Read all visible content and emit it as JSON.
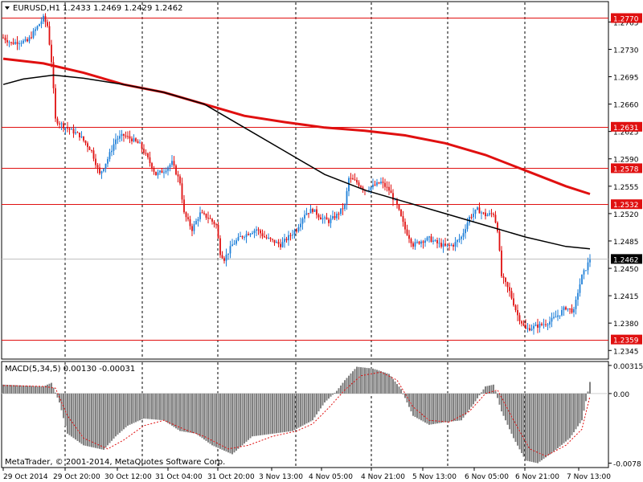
{
  "header": {
    "symbol": "EURUSD,H1",
    "ohlc": "1.2433 1.2469 1.2429 1.2462"
  },
  "macd_header": "MACD(5,34,5) 0.00130 -0.00031",
  "footer": "MetaTrader, © 2001-2014, MetaQuotes Software Corp.",
  "colors": {
    "bull": "#1e7fd8",
    "bear": "#e01010",
    "hline": "#e01010",
    "ma_slow": "#e01010",
    "ma_fast": "#000000",
    "histogram": "#808080",
    "signal": "#e01010"
  },
  "chart_data": [
    {
      "type": "candlestick",
      "title": "EURUSD,H1",
      "y_ticks": [
        "1.2765",
        "1.2730",
        "1.2695",
        "1.2660",
        "1.2625",
        "1.2590",
        "1.2555",
        "1.2520",
        "1.2485",
        "1.2450",
        "1.2415",
        "1.2380",
        "1.2345"
      ],
      "ylim": [
        1.2335,
        1.279
      ],
      "x_ticks": [
        "29 Oct 2014",
        "29 Oct 20:00",
        "30 Oct 12:00",
        "31 Oct 04:00",
        "31 Oct 20:00",
        "3 Nov 13:00",
        "4 Nov 05:00",
        "4 Nov 21:00",
        "5 Nov 13:00",
        "6 Nov 05:00",
        "6 Nov 21:00",
        "7 Nov 13:00"
      ],
      "price_lines": [
        {
          "value": 1.277,
          "label": "1.2770"
        },
        {
          "value": 1.2631,
          "label": "1.2631"
        },
        {
          "value": 1.2578,
          "label": "1.2578"
        },
        {
          "value": 1.2532,
          "label": "1.2532"
        },
        {
          "value": 1.2359,
          "label": "1.2359"
        }
      ],
      "current_price": {
        "value": 1.2462,
        "label": "1.2462"
      },
      "close_path": [
        [
          0,
          1.2745
        ],
        [
          4,
          1.2738
        ],
        [
          8,
          1.274
        ],
        [
          12,
          1.274
        ],
        [
          16,
          1.2755
        ],
        [
          20,
          1.277
        ],
        [
          22,
          1.276
        ],
        [
          24,
          1.2715
        ],
        [
          26,
          1.264
        ],
        [
          30,
          1.2632
        ],
        [
          38,
          1.262
        ],
        [
          44,
          1.26
        ],
        [
          48,
          1.257
        ],
        [
          52,
          1.259
        ],
        [
          56,
          1.2615
        ],
        [
          60,
          1.262
        ],
        [
          64,
          1.2615
        ],
        [
          68,
          1.2608
        ],
        [
          72,
          1.259
        ],
        [
          76,
          1.257
        ],
        [
          80,
          1.2575
        ],
        [
          84,
          1.2585
        ],
        [
          88,
          1.256
        ],
        [
          90,
          1.252
        ],
        [
          94,
          1.25
        ],
        [
          98,
          1.252
        ],
        [
          102,
          1.2515
        ],
        [
          106,
          1.2505
        ],
        [
          108,
          1.247
        ],
        [
          110,
          1.2462
        ],
        [
          114,
          1.248
        ],
        [
          118,
          1.249
        ],
        [
          122,
          1.2495
        ],
        [
          126,
          1.25
        ],
        [
          130,
          1.249
        ],
        [
          134,
          1.2485
        ],
        [
          138,
          1.248
        ],
        [
          142,
          1.249
        ],
        [
          146,
          1.25
        ],
        [
          150,
          1.252
        ],
        [
          154,
          1.2525
        ],
        [
          158,
          1.2515
        ],
        [
          162,
          1.251
        ],
        [
          166,
          1.2518
        ],
        [
          170,
          1.253
        ],
        [
          172,
          1.2565
        ],
        [
          176,
          1.256
        ],
        [
          180,
          1.255
        ],
        [
          184,
          1.2555
        ],
        [
          188,
          1.256
        ],
        [
          192,
          1.255
        ],
        [
          196,
          1.253
        ],
        [
          200,
          1.25
        ],
        [
          204,
          1.248
        ],
        [
          208,
          1.2485
        ],
        [
          212,
          1.2488
        ],
        [
          216,
          1.2482
        ],
        [
          220,
          1.2478
        ],
        [
          224,
          1.248
        ],
        [
          228,
          1.249
        ],
        [
          232,
          1.2515
        ],
        [
          236,
          1.2525
        ],
        [
          240,
          1.2518
        ],
        [
          244,
          1.252
        ],
        [
          246,
          1.25
        ],
        [
          248,
          1.244
        ],
        [
          252,
          1.242
        ],
        [
          256,
          1.239
        ],
        [
          260,
          1.2372
        ],
        [
          264,
          1.2375
        ],
        [
          268,
          1.2378
        ],
        [
          272,
          1.2382
        ],
        [
          276,
          1.239
        ],
        [
          280,
          1.24
        ],
        [
          284,
          1.2395
        ],
        [
          286,
          1.242
        ],
        [
          288,
          1.244
        ],
        [
          290,
          1.245
        ],
        [
          292,
          1.2462
        ]
      ],
      "ma_slow": [
        [
          0,
          1.2718
        ],
        [
          20,
          1.2712
        ],
        [
          40,
          1.27
        ],
        [
          60,
          1.2685
        ],
        [
          80,
          1.2675
        ],
        [
          100,
          1.266
        ],
        [
          120,
          1.2645
        ],
        [
          140,
          1.2637
        ],
        [
          160,
          1.263
        ],
        [
          180,
          1.2626
        ],
        [
          200,
          1.262
        ],
        [
          220,
          1.261
        ],
        [
          240,
          1.2595
        ],
        [
          260,
          1.2575
        ],
        [
          280,
          1.2555
        ],
        [
          292,
          1.2545
        ]
      ],
      "ma_fast": [
        [
          0,
          1.2685
        ],
        [
          10,
          1.2692
        ],
        [
          25,
          1.2697
        ],
        [
          40,
          1.2693
        ],
        [
          60,
          1.2685
        ],
        [
          80,
          1.2675
        ],
        [
          100,
          1.266
        ],
        [
          120,
          1.263
        ],
        [
          140,
          1.26
        ],
        [
          160,
          1.257
        ],
        [
          180,
          1.255
        ],
        [
          200,
          1.2535
        ],
        [
          220,
          1.252
        ],
        [
          240,
          1.2505
        ],
        [
          260,
          1.249
        ],
        [
          280,
          1.2478
        ],
        [
          292,
          1.2475
        ]
      ]
    },
    {
      "type": "histogram",
      "title": "MACD(5,34,5)",
      "y_ticks": [
        "0.00315",
        "0.00",
        "-0.0078"
      ],
      "ylim": [
        -0.0082,
        0.0035
      ],
      "histogram_path": [
        [
          0,
          0.001
        ],
        [
          10,
          0.0009
        ],
        [
          20,
          0.0008
        ],
        [
          24,
          0.0012
        ],
        [
          28,
          -0.001
        ],
        [
          32,
          -0.0045
        ],
        [
          40,
          -0.0058
        ],
        [
          50,
          -0.0063
        ],
        [
          56,
          -0.0048
        ],
        [
          62,
          -0.0036
        ],
        [
          70,
          -0.0028
        ],
        [
          80,
          -0.003
        ],
        [
          88,
          -0.0042
        ],
        [
          96,
          -0.0045
        ],
        [
          104,
          -0.0058
        ],
        [
          114,
          -0.0068
        ],
        [
          124,
          -0.0048
        ],
        [
          134,
          -0.0045
        ],
        [
          144,
          -0.0042
        ],
        [
          154,
          -0.003
        ],
        [
          160,
          -0.001
        ],
        [
          166,
          0.0003
        ],
        [
          170,
          0.0015
        ],
        [
          176,
          0.003
        ],
        [
          184,
          0.0028
        ],
        [
          192,
          0.0022
        ],
        [
          198,
          0.0005
        ],
        [
          204,
          -0.0025
        ],
        [
          212,
          -0.0035
        ],
        [
          220,
          -0.0032
        ],
        [
          228,
          -0.003
        ],
        [
          234,
          -0.0012
        ],
        [
          240,
          0.0008
        ],
        [
          244,
          0.001
        ],
        [
          248,
          -0.002
        ],
        [
          254,
          -0.005
        ],
        [
          260,
          -0.0075
        ],
        [
          266,
          -0.0078
        ],
        [
          274,
          -0.0065
        ],
        [
          282,
          -0.005
        ],
        [
          288,
          -0.003
        ],
        [
          292,
          0.0013
        ]
      ],
      "signal_path": [
        [
          0,
          0.0009
        ],
        [
          20,
          0.0008
        ],
        [
          26,
          0.0006
        ],
        [
          32,
          -0.0025
        ],
        [
          40,
          -0.005
        ],
        [
          52,
          -0.0062
        ],
        [
          60,
          -0.0052
        ],
        [
          70,
          -0.0036
        ],
        [
          80,
          -0.003
        ],
        [
          90,
          -0.004
        ],
        [
          100,
          -0.0048
        ],
        [
          112,
          -0.0062
        ],
        [
          122,
          -0.0058
        ],
        [
          134,
          -0.0048
        ],
        [
          146,
          -0.0042
        ],
        [
          154,
          -0.0034
        ],
        [
          162,
          -0.0016
        ],
        [
          170,
          0.0004
        ],
        [
          178,
          0.002
        ],
        [
          188,
          0.0024
        ],
        [
          196,
          0.0015
        ],
        [
          204,
          -0.0015
        ],
        [
          212,
          -0.003
        ],
        [
          222,
          -0.0032
        ],
        [
          232,
          -0.002
        ],
        [
          240,
          0.0
        ],
        [
          246,
          0.0004
        ],
        [
          254,
          -0.003
        ],
        [
          262,
          -0.0062
        ],
        [
          270,
          -0.007
        ],
        [
          280,
          -0.0058
        ],
        [
          288,
          -0.004
        ],
        [
          292,
          -0.0003
        ]
      ]
    }
  ]
}
